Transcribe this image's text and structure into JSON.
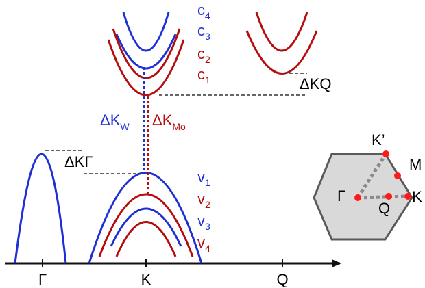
{
  "colors": {
    "blue": "#1f2fd6",
    "red": "#b50d0d",
    "black": "#111111",
    "hex_fill": "#d9d9d9",
    "hex_stroke": "#5a5a5a",
    "path_gray": "#8a8a8a",
    "point_red": "#ff1a1a"
  },
  "axis": {
    "ticks": [
      "Γ",
      "K",
      "Q"
    ]
  },
  "conduction_labels": [
    {
      "base": "c",
      "sub": "4",
      "color": "blue"
    },
    {
      "base": "c",
      "sub": "3",
      "color": "blue"
    },
    {
      "base": "c",
      "sub": "2",
      "color": "red"
    },
    {
      "base": "c",
      "sub": "1",
      "color": "red"
    }
  ],
  "valence_labels": [
    {
      "base": "v",
      "sub": "1",
      "color": "blue"
    },
    {
      "base": "v",
      "sub": "2",
      "color": "red"
    },
    {
      "base": "v",
      "sub": "3",
      "color": "blue"
    },
    {
      "base": "v",
      "sub": "4",
      "color": "red"
    }
  ],
  "offsets": {
    "dkq": "ΔKQ",
    "dkg": "ΔKΓ",
    "dk_w_base": "ΔK",
    "dk_w_sub": "W",
    "dk_mo_base": "ΔK",
    "dk_mo_sub": "Mo"
  },
  "bz_labels": {
    "k_prime": "K’",
    "m": "M",
    "gamma": "Γ",
    "q": "Q",
    "k": "K"
  }
}
